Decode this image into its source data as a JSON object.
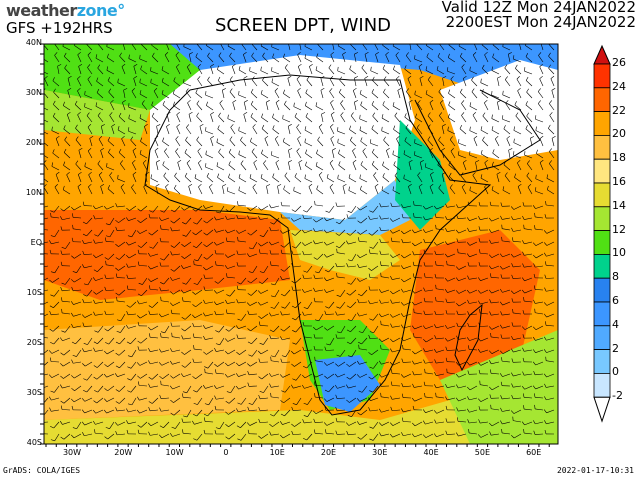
{
  "header": {
    "logo": {
      "part1": "weather",
      "part2": "zone",
      "mark": "°"
    },
    "model_run": "GFS +192HRS",
    "title": "SCREEN DPT, WIND",
    "valid_utc": "Valid 12Z Mon 24JAN2022",
    "valid_local": "2200EST Mon 24JAN2022"
  },
  "map": {
    "region": "Africa",
    "lat_labels": [
      "40N",
      "30N",
      "20N",
      "10N",
      "EQ",
      "10S",
      "20S",
      "30S",
      "40S"
    ],
    "lon_labels": [
      "30W",
      "20W",
      "10W",
      "0",
      "10E",
      "20E",
      "30E",
      "40E",
      "50E",
      "60E"
    ],
    "lon_range": [
      -35,
      65
    ],
    "lat_range": [
      -40,
      40
    ],
    "overlay": "wind barbs"
  },
  "colorbar": {
    "labels": [
      "26",
      "24",
      "22",
      "20",
      "18",
      "16",
      "14",
      "12",
      "10",
      "8",
      "6",
      "4",
      "2",
      "0",
      "-2"
    ],
    "colors": [
      "#ff3300",
      "#ff6600",
      "#ffa500",
      "#ffc040",
      "#ffe680",
      "#e6dc32",
      "#a5e632",
      "#50e014",
      "#00d28c",
      "#2882f0",
      "#3c96ff",
      "#50aaff",
      "#78c8ff",
      "#c8e6ff"
    ],
    "over_color": "#d01010",
    "under_color": "#ffffff"
  },
  "footer": {
    "credit": "GrADS: COLA/IGES",
    "timestamp": "2022-01-17-10:31"
  }
}
